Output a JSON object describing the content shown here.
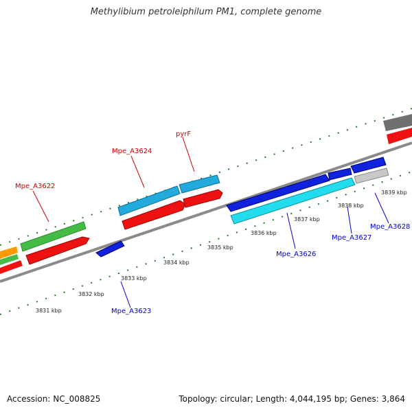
{
  "title": "Methylibium petroleiphilum PM1, complete genome",
  "footer": {
    "accession": "Accession: NC_008825",
    "stats": "Topology: circular; Length: 4,044,195 bp; Genes: 3,864"
  },
  "colors": {
    "backbone": "#8a8a8a",
    "ticks": "#1f7a1f",
    "label_top": "#cc0000",
    "label_bottom": "#0000cc"
  },
  "ticks": [
    "3831 kbp",
    "3832 kbp",
    "3833 kbp",
    "3834 kbp",
    "3835 kbp",
    "3836 kbp",
    "3837 kbp",
    "3838 kbp",
    "3839 kbp"
  ],
  "gene_labels_top": [
    "Mpe_A3622",
    "Mpe_A3624",
    "pyrF"
  ],
  "gene_labels_bottom": [
    "Mpe_A3623",
    "Mpe_A3626",
    "Mpe_A3627",
    "Mpe_A3628"
  ]
}
